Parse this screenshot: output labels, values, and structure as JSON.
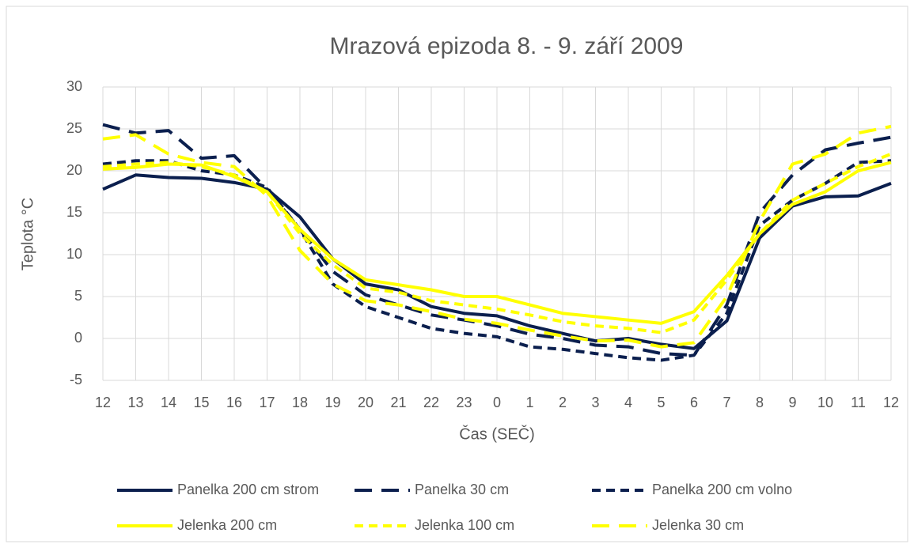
{
  "chart_data": {
    "type": "line",
    "title": "Mrazová epizoda 8. - 9. září 2009",
    "x_label": "Čas (SEČ)",
    "y_label": "Teplota °C",
    "categories": [
      "12",
      "13",
      "14",
      "15",
      "16",
      "17",
      "18",
      "19",
      "20",
      "21",
      "22",
      "23",
      "0",
      "1",
      "2",
      "3",
      "4",
      "5",
      "6",
      "7",
      "8",
      "9",
      "10",
      "11",
      "12"
    ],
    "ylim": [
      -5,
      30
    ],
    "yticks": [
      -5,
      0,
      5,
      10,
      15,
      20,
      25,
      30
    ],
    "grid": true,
    "legend": "bottom",
    "series": [
      {
        "name": "Panelka 200 cm strom",
        "color": "#0b1f4e",
        "dash": "solid",
        "values": [
          17.8,
          19.5,
          19.2,
          19.1,
          18.6,
          17.8,
          14.5,
          9.5,
          6.5,
          5.8,
          3.8,
          3.0,
          2.7,
          1.5,
          0.6,
          -0.3,
          0,
          -0.7,
          -1.2,
          2.1,
          12,
          15.8,
          16.9,
          17,
          18.5
        ]
      },
      {
        "name": "Panelka 30 cm",
        "color": "#0b1f4e",
        "dash": "long",
        "values": [
          25.5,
          24.5,
          24.8,
          21.5,
          21.8,
          17.8,
          13,
          8,
          5.2,
          4.0,
          2.8,
          2.2,
          1.5,
          0.5,
          0,
          -0.8,
          -1,
          -1.8,
          -2,
          4,
          15,
          19.5,
          22.5,
          23.3,
          24
        ]
      },
      {
        "name": "Panelka 200 cm volno",
        "color": "#0b1f4e",
        "dash": "short",
        "values": [
          20.8,
          21.2,
          21.2,
          20,
          19.5,
          18,
          13,
          6.5,
          3.8,
          2.5,
          1.2,
          0.6,
          0.2,
          -1,
          -1.3,
          -1.8,
          -2.3,
          -2.6,
          -2,
          3,
          13.5,
          16.5,
          18.5,
          21,
          21.2
        ]
      },
      {
        "name": "Jelenka 200 cm",
        "color": "#ffff00",
        "dash": "solid",
        "values": [
          20.2,
          20.4,
          20.8,
          20.7,
          19.3,
          17.5,
          13,
          9.5,
          7,
          6.4,
          5.8,
          5.0,
          5.0,
          4.0,
          3.0,
          2.6,
          2.2,
          1.8,
          3.2,
          7.5,
          12.5,
          16,
          17.5,
          20,
          21
        ]
      },
      {
        "name": "Jelenka 100 cm",
        "color": "#ffff00",
        "dash": "short",
        "values": [
          20.5,
          20.8,
          21,
          20.5,
          19.5,
          17.5,
          12.5,
          8.8,
          6,
          5.5,
          4.5,
          4.0,
          3.5,
          2.8,
          2.0,
          1.5,
          1.2,
          0.7,
          2.2,
          7,
          12.5,
          16.5,
          18.5,
          20.5,
          22
        ]
      },
      {
        "name": "Jelenka 30 cm",
        "color": "#ffff00",
        "dash": "long",
        "values": [
          23.8,
          24.3,
          22,
          21,
          20.5,
          17,
          10.5,
          6.5,
          4.5,
          4.0,
          3.2,
          2.3,
          1.8,
          1.0,
          0.3,
          -0.3,
          -0.2,
          -1.0,
          -0.5,
          5,
          14,
          20.8,
          22,
          24.5,
          25.3
        ]
      }
    ]
  }
}
